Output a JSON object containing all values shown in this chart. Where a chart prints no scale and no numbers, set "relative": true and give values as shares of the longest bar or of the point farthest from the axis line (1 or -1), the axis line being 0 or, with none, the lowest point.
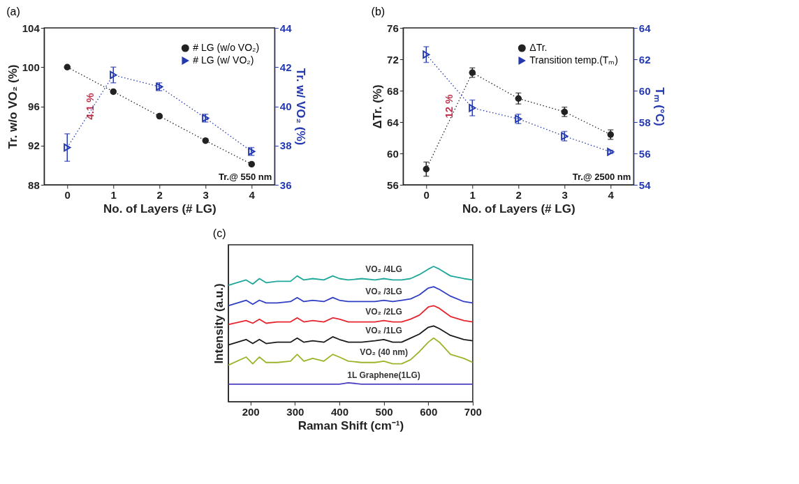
{
  "chart_data": [
    {
      "type": "line",
      "title": "(a)",
      "xlabel": "No. of Layers (# LG)",
      "ylabel": "Tr. w/o VO₂ (%)",
      "y2label": "Tr. w/ VO₂ (%)",
      "x": [
        0,
        1,
        2,
        3,
        4
      ],
      "xlim": [
        -0.5,
        4.5
      ],
      "xticks": [
        0,
        1,
        2,
        3,
        4
      ],
      "ylim": [
        88,
        104
      ],
      "yticks": [
        88,
        92,
        96,
        100,
        104
      ],
      "y2lim": [
        36,
        44
      ],
      "y2ticks": [
        36,
        38,
        40,
        42,
        44
      ],
      "line_style": "dotted",
      "legend": "top right",
      "series": [
        {
          "name": "# LG (w/o VO₂)",
          "color": "#222222",
          "marker": "circle",
          "values": [
            100,
            97.5,
            95,
            92.5,
            90.1
          ]
        },
        {
          "name": "# LG (w/ VO₂)",
          "color": "#2438b0",
          "marker": "triangle",
          "axis": "y2",
          "values": [
            37.9,
            41.6,
            41.0,
            39.4,
            37.7
          ],
          "errors": [
            0.7,
            0.4,
            0.2,
            0.2,
            0.2
          ]
        }
      ],
      "annotations": [
        "4.1 %",
        "Tr.@ 550 nm"
      ]
    },
    {
      "type": "line",
      "title": "(b)",
      "xlabel": "No. of Layers (# LG)",
      "ylabel": "ΔTr. (%)",
      "y2label": "Tₘ (°C)",
      "x": [
        0,
        1,
        2,
        3,
        4
      ],
      "xlim": [
        -0.5,
        4.5
      ],
      "xticks": [
        0,
        1,
        2,
        3,
        4
      ],
      "ylim": [
        56,
        76
      ],
      "yticks": [
        56,
        60,
        64,
        68,
        72,
        76
      ],
      "y2lim": [
        54,
        64
      ],
      "y2ticks": [
        54,
        56,
        58,
        60,
        62,
        64
      ],
      "line_style": "dotted",
      "legend": "top right",
      "series": [
        {
          "name": "ΔTr.",
          "color": "#222222",
          "marker": "circle",
          "values": [
            58.0,
            70.3,
            67.0,
            65.3,
            62.4
          ],
          "errors": [
            0.9,
            0.6,
            0.7,
            0.6,
            0.6
          ]
        },
        {
          "name": "Transition temp.(Tₘ)",
          "color": "#2438b0",
          "marker": "triangle",
          "axis": "y2",
          "values": [
            62.3,
            58.9,
            58.2,
            57.1,
            56.1
          ],
          "errors": [
            0.5,
            0.5,
            0.3,
            0.3,
            0.1
          ]
        }
      ],
      "annotations": [
        "12 %",
        "Tr.@ 2500 nm"
      ]
    },
    {
      "type": "line",
      "title": "(c)",
      "xlabel": "Raman Shift (cm⁻¹)",
      "ylabel": "Intensity (a.u.)",
      "relative": true,
      "x": [
        150,
        190,
        205,
        220,
        235,
        260,
        290,
        305,
        320,
        340,
        365,
        385,
        400,
        420,
        450,
        480,
        500,
        520,
        540,
        560,
        580,
        600,
        612,
        625,
        650,
        680,
        700
      ],
      "xlim": [
        150,
        700
      ],
      "xticks": [
        200,
        300,
        400,
        500,
        600,
        700
      ],
      "legend": false,
      "series": [
        {
          "name": "VO₂ /4LG",
          "color": "#1fa89a",
          "values": [
            0.86,
            0.9,
            0.87,
            0.91,
            0.88,
            0.89,
            0.89,
            0.93,
            0.9,
            0.91,
            0.9,
            0.93,
            0.91,
            0.9,
            0.91,
            0.9,
            0.91,
            0.9,
            0.9,
            0.91,
            0.94,
            0.98,
            1.0,
            0.98,
            0.93,
            0.91,
            0.9
          ]
        },
        {
          "name": "VO₂ /3LG",
          "color": "#2e3fc4",
          "values": [
            0.71,
            0.75,
            0.72,
            0.75,
            0.73,
            0.73,
            0.74,
            0.77,
            0.74,
            0.75,
            0.74,
            0.77,
            0.75,
            0.74,
            0.74,
            0.74,
            0.75,
            0.74,
            0.75,
            0.76,
            0.79,
            0.84,
            0.85,
            0.83,
            0.78,
            0.74,
            0.73
          ]
        },
        {
          "name": "VO₂ /2LG",
          "color": "#e8252f",
          "values": [
            0.57,
            0.6,
            0.58,
            0.61,
            0.58,
            0.59,
            0.59,
            0.62,
            0.59,
            0.6,
            0.59,
            0.62,
            0.61,
            0.59,
            0.59,
            0.59,
            0.6,
            0.59,
            0.59,
            0.61,
            0.64,
            0.7,
            0.71,
            0.69,
            0.63,
            0.6,
            0.59
          ]
        },
        {
          "name": "VO₂ /1LG",
          "color": "#1a1a1a",
          "values": [
            0.42,
            0.46,
            0.43,
            0.46,
            0.43,
            0.44,
            0.44,
            0.47,
            0.44,
            0.45,
            0.44,
            0.48,
            0.46,
            0.44,
            0.44,
            0.45,
            0.46,
            0.44,
            0.44,
            0.47,
            0.5,
            0.55,
            0.56,
            0.54,
            0.49,
            0.46,
            0.45
          ]
        },
        {
          "name": "VO₂ (40 nm)",
          "color": "#9ab52a",
          "values": [
            0.27,
            0.33,
            0.28,
            0.33,
            0.29,
            0.29,
            0.3,
            0.35,
            0.3,
            0.32,
            0.3,
            0.35,
            0.33,
            0.3,
            0.29,
            0.29,
            0.3,
            0.28,
            0.28,
            0.31,
            0.37,
            0.44,
            0.47,
            0.44,
            0.35,
            0.32,
            0.29
          ]
        },
        {
          "name": "1L Graphene(1LG)",
          "color": "#4b3fc0",
          "values": [
            0.13,
            0.13,
            0.13,
            0.13,
            0.13,
            0.13,
            0.13,
            0.13,
            0.13,
            0.13,
            0.13,
            0.13,
            0.13,
            0.14,
            0.13,
            0.13,
            0.13,
            0.13,
            0.13,
            0.13,
            0.13,
            0.13,
            0.13,
            0.13,
            0.13,
            0.13,
            0.13
          ]
        }
      ]
    }
  ]
}
